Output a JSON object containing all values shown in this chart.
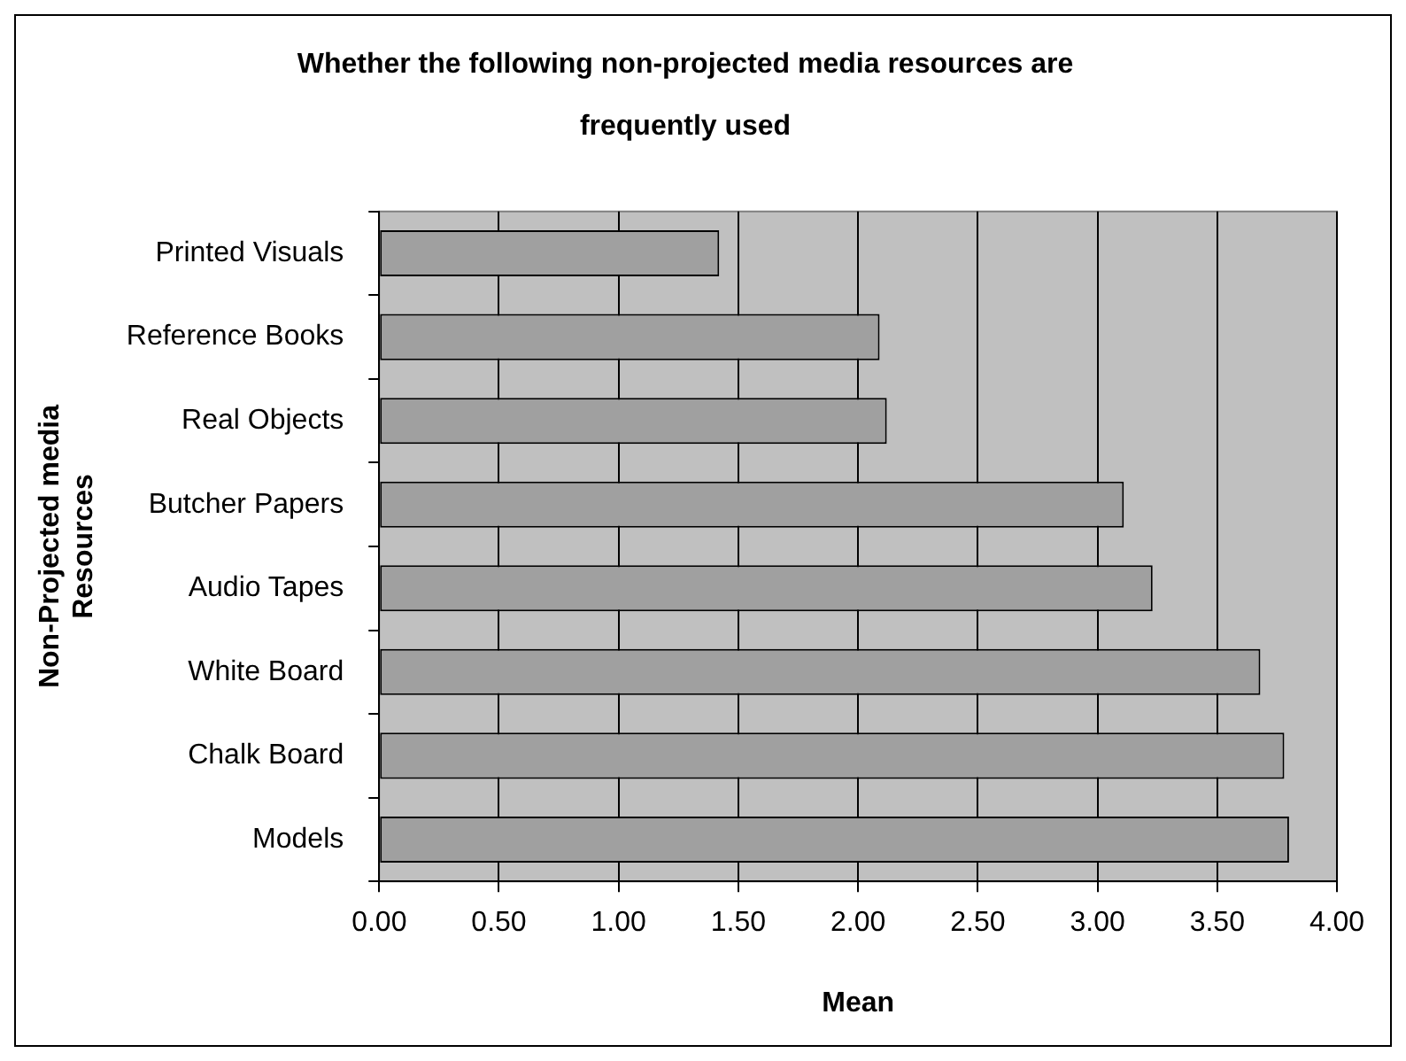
{
  "chart_data": {
    "type": "bar",
    "orientation": "horizontal",
    "title": "Whether the following non-projected media resources are frequently used",
    "xlabel": "Mean",
    "ylabel": "Non-Projected media Resources",
    "categories": [
      "Printed Visuals",
      "Reference Books",
      "Real Objects",
      "Butcher Papers",
      "Audio Tapes",
      "White Board",
      "Chalk Board",
      "Models"
    ],
    "values": [
      1.42,
      2.09,
      2.12,
      3.11,
      3.23,
      3.68,
      3.78,
      3.8
    ],
    "color": "#a0a0a0",
    "xlim": [
      0,
      4
    ],
    "xticks": [
      {
        "value": 0,
        "label": "0.00"
      },
      {
        "value": 0.5,
        "label": "0.50"
      },
      {
        "value": 1,
        "label": "1.00"
      },
      {
        "value": 1.5,
        "label": "1.50"
      },
      {
        "value": 2,
        "label": "2.00"
      },
      {
        "value": 2.5,
        "label": "2.50"
      },
      {
        "value": 3,
        "label": "3.00"
      },
      {
        "value": 3.5,
        "label": "3.50"
      },
      {
        "value": 4,
        "label": "4.00"
      }
    ],
    "grid": "x",
    "legend": false
  }
}
